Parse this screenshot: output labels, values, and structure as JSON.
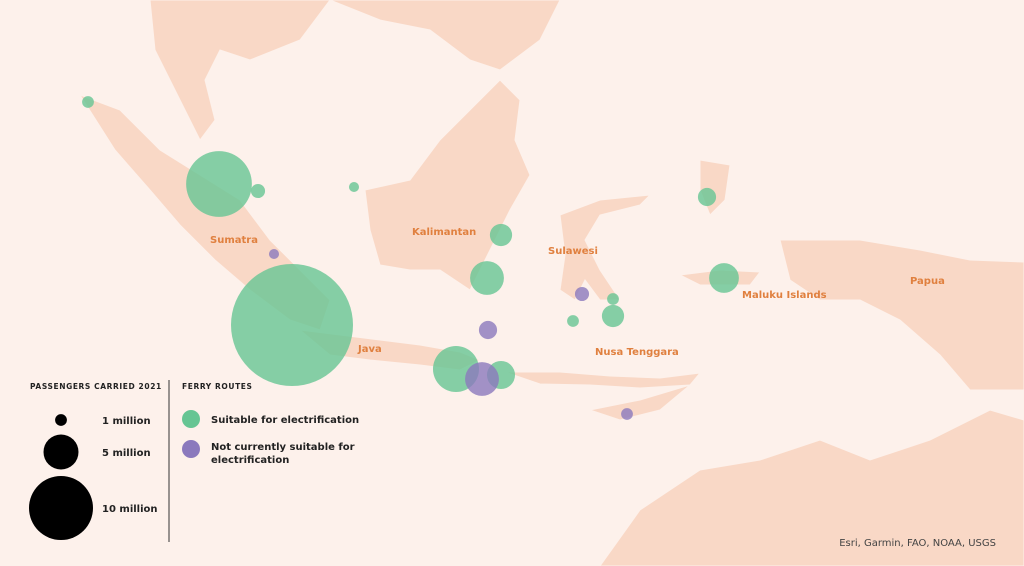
{
  "attribution": "Esri, Garmin, FAO, NOAA, USGS",
  "regions": [
    "Sumatra",
    "Kalimantan",
    "Sulawesi",
    "Java",
    "Nusa Tenggara",
    "Maluku Islands",
    "Papua"
  ],
  "size_legend": {
    "title": "PASSENGERS CARRIED 2021",
    "sizes": [
      {
        "value": 1000000,
        "label": "1 million"
      },
      {
        "value": 5000000,
        "label": "5 million"
      },
      {
        "value": 10000000,
        "label": "10 million"
      }
    ]
  },
  "routes_legend": {
    "title": "FERRY ROUTES"
  },
  "series": [
    {
      "name": "Suitable for electrification",
      "color": "#66c593",
      "values": [
        1000000,
        10300000,
        1400000,
        700000,
        20000000,
        2800000,
        4800000,
        6900000,
        3800000,
        1000000,
        2800000,
        1000000,
        2100000,
        4100000
      ]
    },
    {
      "name": "Not currently suitable for electrification",
      "color": "#8b79bd",
      "values": [
        700000,
        2100000,
        4800000,
        1400000,
        1000000
      ]
    }
  ]
}
